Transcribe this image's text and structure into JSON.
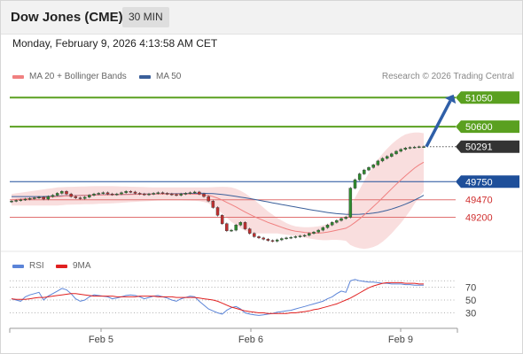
{
  "header": {
    "title": "Dow Jones (CME)",
    "interval": "30 MIN"
  },
  "datetime": "Monday, February 9, 2026 4:13:58 AM CET",
  "legend": {
    "ma20_label": "MA 20 + Bollinger Bands",
    "ma50_label": "MA 50",
    "copyright": "Research © 2026 Trading Central"
  },
  "rsi_legend": {
    "rsi_label": "RSI",
    "ma_label": "9MA"
  },
  "colors": {
    "up_candle": "#2e8b2e",
    "down_candle": "#c03030",
    "bollinger_fill": "#f8d8d8",
    "ma20": "#f08080",
    "ma50": "#3a5f9a",
    "target_green": "#5aa020",
    "support_red": "#e07070",
    "pivot_blue": "#1e4f9a",
    "current_dark": "#333333",
    "rsi_line": "#5b84d8",
    "rsi_ma": "#e02020"
  },
  "chart_data": [
    {
      "type": "candlestick",
      "x_tick_labels": [
        "Feb 5",
        "Feb 6",
        "Feb 9"
      ],
      "ylim": [
        48700,
        51300
      ],
      "levels": [
        {
          "label": "51050",
          "value": 51050,
          "kind": "target"
        },
        {
          "label": "50600",
          "value": 50600,
          "kind": "target"
        },
        {
          "label": "50291",
          "value": 50291,
          "kind": "current"
        },
        {
          "label": "49750",
          "value": 49750,
          "kind": "pivot"
        },
        {
          "label": "49470",
          "value": 49470,
          "kind": "support"
        },
        {
          "label": "49200",
          "value": 49200,
          "kind": "support"
        }
      ],
      "close_series": [
        49450,
        49460,
        49470,
        49480,
        49490,
        49500,
        49510,
        49480,
        49520,
        49540,
        49570,
        49600,
        49560,
        49520,
        49500,
        49490,
        49510,
        49540,
        49560,
        49570,
        49580,
        49560,
        49550,
        49560,
        49580,
        49600,
        49590,
        49570,
        49560,
        49550,
        49560,
        49570,
        49580,
        49570,
        49560,
        49550,
        49540,
        49560,
        49570,
        49580,
        49590,
        49560,
        49520,
        49450,
        49350,
        49230,
        49100,
        48990,
        49000,
        49080,
        49120,
        49020,
        48950,
        48900,
        48880,
        48860,
        48840,
        48830,
        48850,
        48870,
        48880,
        48890,
        48900,
        48910,
        48920,
        48950,
        48970,
        49000,
        49040,
        49080,
        49120,
        49150,
        49180,
        49200,
        49650,
        49780,
        49870,
        49930,
        49970,
        50010,
        50070,
        50110,
        50140,
        50180,
        50220,
        50250,
        50270,
        50280,
        50285,
        50290,
        50291
      ],
      "ma20_series": [
        49470,
        49475,
        49480,
        49485,
        49490,
        49495,
        49500,
        49505,
        49510,
        49515,
        49520,
        49525,
        49530,
        49532,
        49534,
        49536,
        49538,
        49540,
        49542,
        49544,
        49545,
        49546,
        49547,
        49548,
        49550,
        49552,
        49553,
        49554,
        49555,
        49556,
        49557,
        49558,
        49559,
        49560,
        49560,
        49560,
        49560,
        49560,
        49559,
        49558,
        49557,
        49555,
        49548,
        49538,
        49520,
        49495,
        49465,
        49430,
        49395,
        49360,
        49320,
        49280,
        49245,
        49210,
        49180,
        49150,
        49120,
        49095,
        49070,
        49045,
        49020,
        49000,
        48985,
        48975,
        48965,
        48958,
        48955,
        48955,
        48960,
        48970,
        48985,
        49000,
        49015,
        49030,
        49070,
        49120,
        49175,
        49235,
        49300,
        49365,
        49430,
        49500,
        49570,
        49640,
        49710,
        49775,
        49840,
        49900,
        49960,
        50010,
        50050
      ],
      "ma50_series": [
        49520,
        49520,
        49520,
        49520,
        49520,
        49520,
        49520,
        49520,
        49522,
        49525,
        49527,
        49530,
        49532,
        49534,
        49536,
        49538,
        49540,
        49542,
        49544,
        49546,
        49548,
        49550,
        49551,
        49552,
        49553,
        49554,
        49555,
        49556,
        49557,
        49558,
        49559,
        49560,
        49561,
        49562,
        49563,
        49564,
        49565,
        49566,
        49567,
        49568,
        49569,
        49570,
        49570,
        49568,
        49565,
        49560,
        49552,
        49543,
        49533,
        49522,
        49511,
        49500,
        49488,
        49476,
        49463,
        49450,
        49437,
        49423,
        49410,
        49397,
        49384,
        49371,
        49358,
        49345,
        49332,
        49320,
        49308,
        49296,
        49284,
        49274,
        49264,
        49256,
        49250,
        49246,
        49244,
        49244,
        49246,
        49250,
        49256,
        49264,
        49275,
        49290,
        49307,
        49327,
        49350,
        49375,
        49402,
        49432,
        49465,
        49500,
        49540
      ],
      "bollinger_upper": [
        49560,
        49570,
        49580,
        49590,
        49600,
        49610,
        49620,
        49630,
        49640,
        49650,
        49660,
        49665,
        49668,
        49670,
        49672,
        49674,
        49676,
        49678,
        49680,
        49680,
        49680,
        49680,
        49680,
        49678,
        49676,
        49674,
        49672,
        49670,
        49668,
        49666,
        49664,
        49662,
        49660,
        49660,
        49660,
        49660,
        49660,
        49660,
        49660,
        49660,
        49660,
        49660,
        49660,
        49662,
        49665,
        49668,
        49670,
        49668,
        49660,
        49640,
        49610,
        49570,
        49520,
        49470,
        49410,
        49350,
        49290,
        49240,
        49190,
        49150,
        49110,
        49080,
        49060,
        49050,
        49045,
        49045,
        49050,
        49060,
        49075,
        49095,
        49120,
        49150,
        49185,
        49225,
        49370,
        49500,
        49630,
        49760,
        49880,
        49990,
        50090,
        50180,
        50260,
        50330,
        50390,
        50440,
        50480,
        50500,
        50510,
        50510,
        50500
      ],
      "bollinger_lower": [
        49380,
        49380,
        49380,
        49380,
        49380,
        49380,
        49380,
        49380,
        49380,
        49380,
        49380,
        49385,
        49392,
        49394,
        49396,
        49398,
        49400,
        49402,
        49404,
        49408,
        49410,
        49412,
        49414,
        49418,
        49424,
        49430,
        49434,
        49438,
        49442,
        49446,
        49450,
        49454,
        49458,
        49460,
        49460,
        49460,
        49460,
        49460,
        49458,
        49456,
        49454,
        49450,
        49436,
        49414,
        49375,
        49322,
        49260,
        49192,
        49130,
        49080,
        49030,
        48990,
        48970,
        48950,
        48950,
        48950,
        48950,
        48950,
        48950,
        48940,
        48930,
        48920,
        48910,
        48900,
        48885,
        48871,
        48860,
        48850,
        48845,
        48845,
        48850,
        48850,
        48845,
        48835,
        48770,
        48740,
        48720,
        48710,
        48720,
        48740,
        48770,
        48820,
        48880,
        48950,
        49030,
        49110,
        49200,
        49300,
        49410,
        49510,
        49600
      ]
    },
    {
      "type": "line",
      "title": "RSI",
      "y_tick_labels": [
        "70",
        "50",
        "30"
      ],
      "ylim": [
        10,
        90
      ],
      "series": [
        {
          "name": "RSI",
          "values": [
            52,
            50,
            48,
            55,
            58,
            60,
            62,
            50,
            56,
            60,
            64,
            68,
            66,
            60,
            52,
            48,
            50,
            55,
            58,
            57,
            56,
            55,
            52,
            53,
            55,
            57,
            58,
            57,
            55,
            52,
            54,
            56,
            57,
            55,
            53,
            50,
            48,
            52,
            54,
            56,
            55,
            48,
            42,
            36,
            33,
            30,
            28,
            34,
            38,
            40,
            36,
            30,
            28,
            27,
            26,
            27,
            28,
            29,
            31,
            32,
            33,
            34,
            36,
            38,
            40,
            42,
            44,
            46,
            48,
            52,
            55,
            60,
            64,
            62,
            80,
            82,
            80,
            79,
            78,
            78,
            77,
            76,
            76,
            75,
            75,
            75,
            74,
            74,
            73,
            73,
            73
          ]
        },
        {
          "name": "9MA",
          "values": [
            52,
            51,
            51,
            51,
            52,
            53,
            54,
            54,
            55,
            56,
            57,
            58,
            59,
            60,
            60,
            59,
            58,
            57,
            56,
            56,
            56,
            56,
            56,
            55,
            55,
            55,
            55,
            55,
            56,
            56,
            56,
            56,
            55,
            55,
            55,
            55,
            54,
            54,
            54,
            54,
            54,
            53,
            52,
            51,
            50,
            48,
            45,
            42,
            39,
            37,
            35,
            33,
            32,
            31,
            30,
            30,
            29,
            29,
            29,
            29,
            29,
            30,
            30,
            31,
            32,
            33,
            35,
            36,
            38,
            40,
            42,
            44,
            47,
            50,
            53,
            57,
            61,
            65,
            69,
            72,
            74,
            76,
            77,
            77,
            77,
            77,
            76,
            76,
            76,
            75,
            75
          ]
        }
      ]
    }
  ]
}
